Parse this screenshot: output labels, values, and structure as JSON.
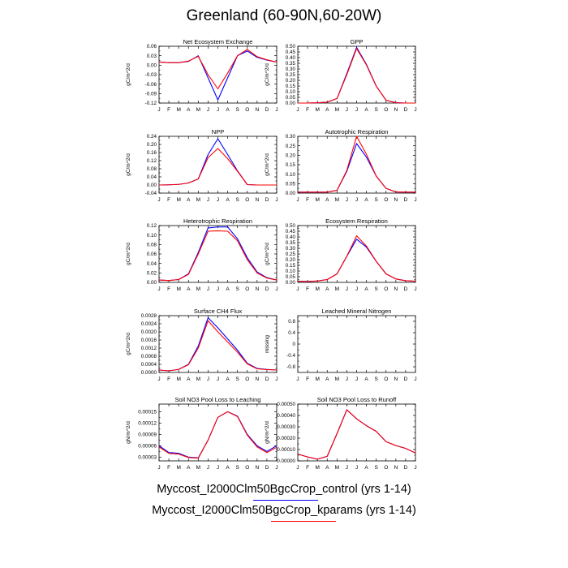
{
  "page_title": "Greenland (60-90N,60-20W)",
  "legend": {
    "entries": [
      {
        "label": "Myccost_I2000Clm50BgcCrop_control (yrs 1-14)",
        "color": "#0000ff"
      },
      {
        "label": "Myccost_I2000Clm50BgcCrop_kparams (yrs 1-14)",
        "color": "#ff0000"
      }
    ]
  },
  "colors": {
    "control": "#0000ff",
    "kparams": "#ff0000"
  },
  "chart_data": [
    {
      "type": "line",
      "title": "Net Ecosystem Exchange",
      "ylabel": "gC/m^2/d",
      "categories": [
        "J",
        "F",
        "M",
        "A",
        "M",
        "J",
        "J",
        "A",
        "S",
        "O",
        "N",
        "D",
        "J"
      ],
      "ylim": [
        -0.12,
        0.06
      ],
      "yticks": [
        "0.06",
        "0.03",
        "0.00",
        "-0.03",
        "-0.06",
        "-0.09",
        "-0.12"
      ],
      "series": [
        {
          "values": [
            0.01,
            0.008,
            0.008,
            0.012,
            0.03,
            -0.04,
            -0.11,
            -0.04,
            0.03,
            0.045,
            0.025,
            0.016,
            0.01
          ]
        },
        {
          "values": [
            0.01,
            0.008,
            0.008,
            0.013,
            0.028,
            -0.03,
            -0.075,
            -0.025,
            0.03,
            0.05,
            0.027,
            0.017,
            0.01
          ]
        }
      ]
    },
    {
      "type": "line",
      "title": "GPP",
      "ylabel": "gC/m^2/d",
      "categories": [
        "J",
        "F",
        "M",
        "A",
        "M",
        "J",
        "J",
        "A",
        "S",
        "O",
        "N",
        "D",
        "J"
      ],
      "ylim": [
        0,
        0.5
      ],
      "yticks": [
        "0.50",
        "0.45",
        "0.40",
        "0.35",
        "0.30",
        "0.25",
        "0.20",
        "0.15",
        "0.10",
        "0.05",
        "0.00"
      ],
      "series": [
        {
          "values": [
            0.0,
            0.0,
            0.002,
            0.008,
            0.04,
            0.26,
            0.49,
            0.34,
            0.15,
            0.025,
            0.003,
            0.0,
            0.0
          ]
        },
        {
          "values": [
            0.0,
            0.0,
            0.002,
            0.008,
            0.04,
            0.25,
            0.48,
            0.335,
            0.148,
            0.025,
            0.003,
            0.0,
            0.0
          ]
        }
      ]
    },
    {
      "type": "line",
      "title": "NPP",
      "ylabel": "gC/m^2/d",
      "categories": [
        "J",
        "F",
        "M",
        "A",
        "M",
        "J",
        "J",
        "A",
        "S",
        "O",
        "N",
        "D",
        "J"
      ],
      "ylim": [
        -0.04,
        0.24
      ],
      "yticks": [
        "0.24",
        "0.20",
        "0.16",
        "0.12",
        "0.08",
        "0.04",
        "0.00",
        "-0.04"
      ],
      "series": [
        {
          "values": [
            0.0,
            0.001,
            0.003,
            0.01,
            0.03,
            0.15,
            0.228,
            0.15,
            0.07,
            0.002,
            0.0,
            0.0,
            0.0
          ]
        },
        {
          "values": [
            0.0,
            0.001,
            0.003,
            0.01,
            0.03,
            0.135,
            0.18,
            0.13,
            0.068,
            0.002,
            0.0,
            0.0,
            0.0
          ]
        }
      ]
    },
    {
      "type": "line",
      "title": "Autotrophic Respiration",
      "ylabel": "gC/m^2/d",
      "categories": [
        "J",
        "F",
        "M",
        "A",
        "M",
        "J",
        "J",
        "A",
        "S",
        "O",
        "N",
        "D",
        "J"
      ],
      "ylim": [
        0,
        0.3
      ],
      "yticks": [
        "0.30",
        "0.25",
        "0.20",
        "0.15",
        "0.10",
        "0.05",
        "0.00"
      ],
      "series": [
        {
          "values": [
            0.005,
            0.005,
            0.005,
            0.005,
            0.015,
            0.115,
            0.262,
            0.19,
            0.09,
            0.025,
            0.006,
            0.005,
            0.005
          ]
        },
        {
          "values": [
            0.005,
            0.005,
            0.005,
            0.005,
            0.015,
            0.12,
            0.3,
            0.205,
            0.09,
            0.025,
            0.006,
            0.005,
            0.005
          ]
        }
      ]
    },
    {
      "type": "line",
      "title": "Heterotrophic Respiration",
      "ylabel": "gC/m^2/d",
      "categories": [
        "J",
        "F",
        "M",
        "A",
        "M",
        "J",
        "J",
        "A",
        "S",
        "O",
        "N",
        "D",
        "J"
      ],
      "ylim": [
        0,
        0.12
      ],
      "yticks": [
        "0.12",
        "0.10",
        "0.08",
        "0.06",
        "0.04",
        "0.02",
        "0.00"
      ],
      "series": [
        {
          "values": [
            0.005,
            0.004,
            0.006,
            0.018,
            0.063,
            0.115,
            0.117,
            0.117,
            0.092,
            0.052,
            0.022,
            0.01,
            0.005
          ]
        },
        {
          "values": [
            0.005,
            0.004,
            0.006,
            0.017,
            0.06,
            0.108,
            0.109,
            0.108,
            0.088,
            0.048,
            0.02,
            0.009,
            0.005
          ]
        }
      ]
    },
    {
      "type": "line",
      "title": "Ecosystem Respiration",
      "ylabel": "gC/m^2/d",
      "categories": [
        "J",
        "F",
        "M",
        "A",
        "M",
        "J",
        "J",
        "A",
        "S",
        "O",
        "N",
        "D",
        "J"
      ],
      "ylim": [
        0,
        0.5
      ],
      "yticks": [
        "0.50",
        "0.45",
        "0.40",
        "0.35",
        "0.30",
        "0.25",
        "0.20",
        "0.15",
        "0.10",
        "0.05",
        "0.00"
      ],
      "series": [
        {
          "values": [
            0.01,
            0.008,
            0.012,
            0.025,
            0.075,
            0.23,
            0.38,
            0.31,
            0.185,
            0.075,
            0.03,
            0.015,
            0.01
          ]
        },
        {
          "values": [
            0.01,
            0.008,
            0.012,
            0.025,
            0.075,
            0.23,
            0.41,
            0.32,
            0.185,
            0.075,
            0.03,
            0.015,
            0.01
          ]
        }
      ]
    },
    {
      "type": "line",
      "title": "Surface CH4 Flux",
      "ylabel": "gC/m^2/d",
      "categories": [
        "J",
        "F",
        "M",
        "A",
        "M",
        "J",
        "J",
        "A",
        "S",
        "O",
        "N",
        "D",
        "J"
      ],
      "ylim": [
        0,
        0.0028
      ],
      "yticks": [
        "0.0028",
        "0.0024",
        "0.0020",
        "0.0016",
        "0.0012",
        "0.0008",
        "0.0004",
        "0.0000"
      ],
      "series": [
        {
          "values": [
            0.00012,
            8e-05,
            0.00015,
            0.0004,
            0.0013,
            0.0027,
            0.0022,
            0.00165,
            0.0011,
            0.00045,
            0.0002,
            0.00015,
            0.00012
          ]
        },
        {
          "values": [
            0.00012,
            8e-05,
            0.00015,
            0.00038,
            0.0012,
            0.00255,
            0.002,
            0.0015,
            0.001,
            0.00042,
            0.00018,
            0.00014,
            0.00012
          ]
        }
      ]
    },
    {
      "type": "line",
      "title": "Leached Mineral Nitrogen",
      "ylabel": "missing",
      "categories": [
        "J",
        "F",
        "M",
        "A",
        "M",
        "J",
        "J",
        "A",
        "S",
        "O",
        "N",
        "D",
        "J"
      ],
      "ylim": [
        -1,
        1
      ],
      "yticks": [
        "0.8",
        "0.4",
        "0",
        "-0.4",
        "-0.8"
      ],
      "ytick_values": [
        0.8,
        0.4,
        0,
        -0.4,
        -0.8
      ],
      "series": []
    },
    {
      "type": "line",
      "title": "Soil NO3 Pool Loss to Leaching",
      "ylabel": "gN/m^2/d",
      "categories": [
        "J",
        "F",
        "M",
        "A",
        "M",
        "J",
        "J",
        "A",
        "S",
        "O",
        "N",
        "D",
        "J"
      ],
      "ylim": [
        2e-05,
        0.00017
      ],
      "yticks": [
        "0.00015",
        "0.00012",
        "0.00009",
        "0.00006",
        "0.00003"
      ],
      "ytick_values": [
        0.00015,
        0.00012,
        9e-05,
        6e-05,
        3e-05
      ],
      "series": [
        {
          "values": [
            6e-05,
            4.2e-05,
            4e-05,
            3e-05,
            2.8e-05,
            7.5e-05,
            0.000135,
            0.00015,
            0.000138,
            9e-05,
            6e-05,
            4.5e-05,
            6e-05
          ]
        },
        {
          "values": [
            5.7e-05,
            4e-05,
            3.8e-05,
            2.9e-05,
            2.7e-05,
            7.5e-05,
            0.000135,
            0.00015,
            0.000137,
            8.8e-05,
            5.7e-05,
            4.2e-05,
            5.6e-05
          ]
        }
      ]
    },
    {
      "type": "line",
      "title": "Soil NO3 Pool Loss to Runoff",
      "ylabel": "gN/m^2/d",
      "categories": [
        "J",
        "F",
        "M",
        "A",
        "M",
        "J",
        "J",
        "A",
        "S",
        "O",
        "N",
        "D",
        "J"
      ],
      "ylim": [
        0,
        0.0005
      ],
      "yticks": [
        "0.00050",
        "0.00040",
        "0.00030",
        "0.00020",
        "0.00010",
        "0.00000"
      ],
      "ytick_values": [
        0.0005,
        0.0004,
        0.0003,
        0.0002,
        0.0001,
        0.0
      ],
      "series": [
        {
          "values": [
            6e-05,
            3.5e-05,
            1.5e-05,
            4e-05,
            0.00024,
            0.00045,
            0.00037,
            0.00031,
            0.00026,
            0.00017,
            0.000135,
            0.00011,
            7e-05
          ]
        },
        {
          "values": [
            6e-05,
            3.5e-05,
            1.5e-05,
            4e-05,
            0.00024,
            0.00045,
            0.00037,
            0.00031,
            0.00026,
            0.00017,
            0.000135,
            0.00011,
            7e-05
          ]
        }
      ]
    }
  ]
}
